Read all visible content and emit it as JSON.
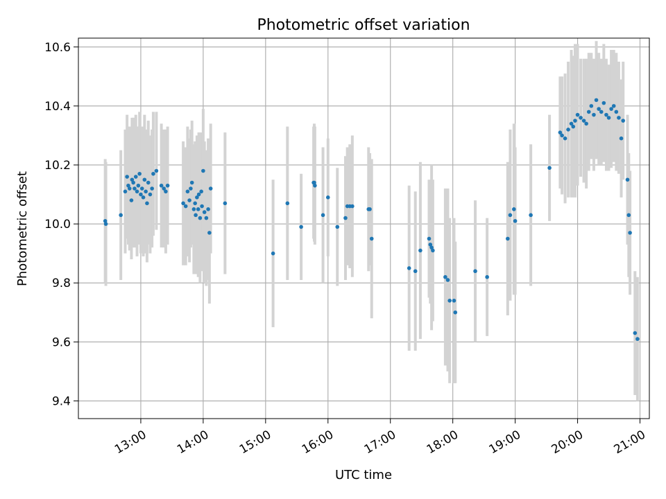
{
  "chart_data": {
    "type": "scatter",
    "title": "Photometric offset variation",
    "xlabel": "UTC time",
    "ylabel": "Photometric offset",
    "x_unit": "hours UTC",
    "xlim": [
      12.0,
      21.15
    ],
    "ylim": [
      9.34,
      10.63
    ],
    "x_ticks": [
      {
        "value": 13,
        "label": "13:00"
      },
      {
        "value": 14,
        "label": "14:00"
      },
      {
        "value": 15,
        "label": "15:00"
      },
      {
        "value": 16,
        "label": "16:00"
      },
      {
        "value": 17,
        "label": "17:00"
      },
      {
        "value": 18,
        "label": "18:00"
      },
      {
        "value": 19,
        "label": "19:00"
      },
      {
        "value": 20,
        "label": "20:00"
      },
      {
        "value": 21,
        "label": "21:00"
      }
    ],
    "y_ticks": [
      {
        "value": 9.4,
        "label": "9.4"
      },
      {
        "value": 9.6,
        "label": "9.6"
      },
      {
        "value": 9.8,
        "label": "9.8"
      },
      {
        "value": 10.0,
        "label": "10.0"
      },
      {
        "value": 10.2,
        "label": "10.2"
      },
      {
        "value": 10.4,
        "label": "10.4"
      },
      {
        "value": 10.6,
        "label": "10.6"
      }
    ],
    "grid": true,
    "colors": {
      "points": "#1f77b4",
      "error_bars": "#d3d3d3",
      "grid": "#b0b0b0"
    },
    "points": [
      [
        12.43,
        10.01,
        0.21
      ],
      [
        12.44,
        10.0,
        0.21
      ],
      [
        12.68,
        10.03,
        0.22
      ],
      [
        12.75,
        10.11,
        0.21
      ],
      [
        12.78,
        10.16,
        0.21
      ],
      [
        12.8,
        10.13,
        0.2
      ],
      [
        12.82,
        10.12,
        0.21
      ],
      [
        12.85,
        10.08,
        0.2
      ],
      [
        12.86,
        10.15,
        0.21
      ],
      [
        12.88,
        10.14,
        0.22
      ],
      [
        12.9,
        10.12,
        0.2
      ],
      [
        12.92,
        10.16,
        0.21
      ],
      [
        12.94,
        10.11,
        0.22
      ],
      [
        12.96,
        10.13,
        0.2
      ],
      [
        12.98,
        10.17,
        0.21
      ],
      [
        13.0,
        10.1,
        0.2
      ],
      [
        13.02,
        10.12,
        0.21
      ],
      [
        13.04,
        10.09,
        0.2
      ],
      [
        13.06,
        10.15,
        0.22
      ],
      [
        13.08,
        10.11,
        0.21
      ],
      [
        13.1,
        10.07,
        0.2
      ],
      [
        13.12,
        10.14,
        0.21
      ],
      [
        13.15,
        10.1,
        0.2
      ],
      [
        13.18,
        10.12,
        0.2
      ],
      [
        13.2,
        10.17,
        0.21
      ],
      [
        13.25,
        10.18,
        0.2
      ],
      [
        13.33,
        10.13,
        0.21
      ],
      [
        13.37,
        10.12,
        0.2
      ],
      [
        13.4,
        10.11,
        0.21
      ],
      [
        13.43,
        10.13,
        0.2
      ],
      [
        13.68,
        10.07,
        0.21
      ],
      [
        13.72,
        10.06,
        0.2
      ],
      [
        13.75,
        10.11,
        0.22
      ],
      [
        13.78,
        10.08,
        0.21
      ],
      [
        13.8,
        10.12,
        0.2
      ],
      [
        13.82,
        10.14,
        0.21
      ],
      [
        13.85,
        10.05,
        0.22
      ],
      [
        13.87,
        10.07,
        0.21
      ],
      [
        13.88,
        10.03,
        0.2
      ],
      [
        13.9,
        10.09,
        0.21
      ],
      [
        13.92,
        10.05,
        0.23
      ],
      [
        13.93,
        10.1,
        0.21
      ],
      [
        13.95,
        10.02,
        0.22
      ],
      [
        13.97,
        10.11,
        0.2
      ],
      [
        13.98,
        10.06,
        0.22
      ],
      [
        14.0,
        10.18,
        0.21
      ],
      [
        14.02,
        10.04,
        0.24
      ],
      [
        14.05,
        10.02,
        0.23
      ],
      [
        14.08,
        10.05,
        0.24
      ],
      [
        14.1,
        9.97,
        0.24
      ],
      [
        14.12,
        10.12,
        0.22
      ],
      [
        14.35,
        10.07,
        0.24
      ],
      [
        15.12,
        9.9,
        0.25
      ],
      [
        15.35,
        10.07,
        0.26
      ],
      [
        15.57,
        9.99,
        0.18
      ],
      [
        15.77,
        10.14,
        0.19
      ],
      [
        15.78,
        10.14,
        0.2
      ],
      [
        15.79,
        10.13,
        0.2
      ],
      [
        15.92,
        10.03,
        0.23
      ],
      [
        16.0,
        10.09,
        0.2
      ],
      [
        16.15,
        9.99,
        0.2
      ],
      [
        16.28,
        10.02,
        0.21
      ],
      [
        16.31,
        10.06,
        0.2
      ],
      [
        16.35,
        10.06,
        0.21
      ],
      [
        16.39,
        10.06,
        0.24
      ],
      [
        16.65,
        10.05,
        0.21
      ],
      [
        16.67,
        10.05,
        0.19
      ],
      [
        16.7,
        9.95,
        0.27
      ],
      [
        17.3,
        9.85,
        0.28
      ],
      [
        17.4,
        9.84,
        0.27
      ],
      [
        17.48,
        9.91,
        0.3
      ],
      [
        17.62,
        9.95,
        0.2
      ],
      [
        17.64,
        9.93,
        0.2
      ],
      [
        17.66,
        9.92,
        0.28
      ],
      [
        17.68,
        9.91,
        0.24
      ],
      [
        17.88,
        9.82,
        0.3
      ],
      [
        17.92,
        9.81,
        0.31
      ],
      [
        17.95,
        9.74,
        0.28
      ],
      [
        18.02,
        9.74,
        0.28
      ],
      [
        18.04,
        9.7,
        0.24
      ],
      [
        18.36,
        9.84,
        0.24
      ],
      [
        18.55,
        9.82,
        0.2
      ],
      [
        18.88,
        9.95,
        0.26
      ],
      [
        18.92,
        10.03,
        0.29
      ],
      [
        18.98,
        10.05,
        0.29
      ],
      [
        19.0,
        10.01,
        0.25
      ],
      [
        19.25,
        10.03,
        0.24
      ],
      [
        19.55,
        10.19,
        0.18
      ],
      [
        19.72,
        10.31,
        0.19
      ],
      [
        19.75,
        10.3,
        0.2
      ],
      [
        19.8,
        10.29,
        0.22
      ],
      [
        19.85,
        10.32,
        0.23
      ],
      [
        19.9,
        10.34,
        0.25
      ],
      [
        19.93,
        10.33,
        0.24
      ],
      [
        19.96,
        10.35,
        0.26
      ],
      [
        20.0,
        10.37,
        0.24
      ],
      [
        20.05,
        10.36,
        0.2
      ],
      [
        20.1,
        10.35,
        0.21
      ],
      [
        20.14,
        10.34,
        0.22
      ],
      [
        20.18,
        10.38,
        0.2
      ],
      [
        20.22,
        10.4,
        0.18
      ],
      [
        20.26,
        10.37,
        0.19
      ],
      [
        20.3,
        10.42,
        0.2
      ],
      [
        20.34,
        10.39,
        0.19
      ],
      [
        20.38,
        10.38,
        0.18
      ],
      [
        20.42,
        10.41,
        0.2
      ],
      [
        20.46,
        10.37,
        0.19
      ],
      [
        20.5,
        10.36,
        0.18
      ],
      [
        20.54,
        10.39,
        0.2
      ],
      [
        20.58,
        10.4,
        0.19
      ],
      [
        20.62,
        10.38,
        0.2
      ],
      [
        20.66,
        10.36,
        0.19
      ],
      [
        20.7,
        10.29,
        0.2
      ],
      [
        20.73,
        10.35,
        0.2
      ],
      [
        20.8,
        10.15,
        0.22
      ],
      [
        20.82,
        10.03,
        0.21
      ],
      [
        20.84,
        9.97,
        0.21
      ],
      [
        20.92,
        9.63,
        0.21
      ],
      [
        20.96,
        9.61,
        0.21
      ]
    ]
  }
}
